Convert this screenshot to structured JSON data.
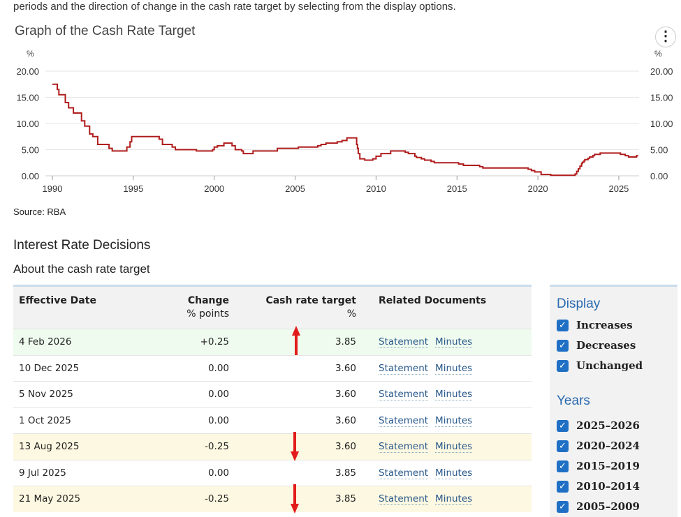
{
  "intro": "periods and the direction of change in the cash rate target by selecting from the display options.",
  "graph_title": "Graph of the Cash Rate Target",
  "menu_icon": "⋮",
  "source": "Source: RBA",
  "section_title": "Interest Rate Decisions",
  "subsection_title": "About the cash rate target",
  "chart_data": {
    "type": "line",
    "title": "Graph of the Cash Rate Target",
    "ylabel": "%",
    "ylim": [
      0,
      20
    ],
    "xlim": [
      1990,
      2026.2
    ],
    "yticks": [
      "0.00",
      "5.00",
      "10.00",
      "15.00",
      "20.00"
    ],
    "xticks": [
      "1990",
      "1995",
      "2000",
      "2005",
      "2010",
      "2015",
      "2020",
      "2025"
    ],
    "series": [
      {
        "name": "Cash rate target",
        "color": "#b01c1c",
        "points": [
          [
            1990,
            17.5
          ],
          [
            1990.3,
            16.5
          ],
          [
            1990.4,
            15.5
          ],
          [
            1990.8,
            14
          ],
          [
            1991,
            13
          ],
          [
            1991.3,
            12
          ],
          [
            1991.8,
            10.5
          ],
          [
            1992,
            9.5
          ],
          [
            1992.3,
            8
          ],
          [
            1992.5,
            7.5
          ],
          [
            1992.8,
            6
          ],
          [
            1993.5,
            5.25
          ],
          [
            1993.7,
            4.75
          ],
          [
            1994.6,
            5.5
          ],
          [
            1994.8,
            6.5
          ],
          [
            1994.9,
            7.5
          ],
          [
            1996.6,
            7
          ],
          [
            1996.8,
            6
          ],
          [
            1997.4,
            5.5
          ],
          [
            1997.6,
            5
          ],
          [
            1998.9,
            4.75
          ],
          [
            1999.9,
            5
          ],
          [
            2000,
            5.5
          ],
          [
            2000.2,
            5.75
          ],
          [
            2000.6,
            6.25
          ],
          [
            2001.1,
            5.75
          ],
          [
            2001.3,
            5
          ],
          [
            2001.7,
            4.75
          ],
          [
            2001.8,
            4.25
          ],
          [
            2002.4,
            4.75
          ],
          [
            2003.9,
            5.25
          ],
          [
            2005.2,
            5.5
          ],
          [
            2006.4,
            5.75
          ],
          [
            2006.6,
            6
          ],
          [
            2006.9,
            6.25
          ],
          [
            2007.6,
            6.5
          ],
          [
            2007.9,
            6.75
          ],
          [
            2008.2,
            7.25
          ],
          [
            2008.8,
            6
          ],
          [
            2008.85,
            5.25
          ],
          [
            2008.9,
            4.25
          ],
          [
            2009,
            3.25
          ],
          [
            2009.3,
            3
          ],
          [
            2009.8,
            3.25
          ],
          [
            2010,
            3.75
          ],
          [
            2010.3,
            4.25
          ],
          [
            2010.9,
            4.75
          ],
          [
            2011.8,
            4.5
          ],
          [
            2012,
            4.25
          ],
          [
            2012.4,
            3.75
          ],
          [
            2012.5,
            3.5
          ],
          [
            2012.8,
            3.25
          ],
          [
            2013,
            3
          ],
          [
            2013.4,
            2.75
          ],
          [
            2013.6,
            2.5
          ],
          [
            2015.1,
            2.25
          ],
          [
            2015.4,
            2
          ],
          [
            2016.4,
            1.75
          ],
          [
            2016.6,
            1.5
          ],
          [
            2019.4,
            1.25
          ],
          [
            2019.6,
            1
          ],
          [
            2019.8,
            0.75
          ],
          [
            2020.2,
            0.25
          ],
          [
            2020.8,
            0.1
          ],
          [
            2022.3,
            0.35
          ],
          [
            2022.4,
            0.85
          ],
          [
            2022.5,
            1.35
          ],
          [
            2022.6,
            1.85
          ],
          [
            2022.7,
            2.35
          ],
          [
            2022.75,
            2.6
          ],
          [
            2022.85,
            2.85
          ],
          [
            2022.9,
            3.1
          ],
          [
            2023.1,
            3.35
          ],
          [
            2023.2,
            3.6
          ],
          [
            2023.4,
            3.85
          ],
          [
            2023.5,
            4.1
          ],
          [
            2023.85,
            4.35
          ],
          [
            2025.1,
            4.1
          ],
          [
            2025.4,
            3.85
          ],
          [
            2025.6,
            3.6
          ],
          [
            2026.1,
            3.85
          ],
          [
            2026.2,
            3.85
          ]
        ]
      }
    ]
  },
  "table": {
    "headers": {
      "date": "Effective Date",
      "change": "Change",
      "change_unit": "% points",
      "target": "Cash rate target",
      "target_unit": "%",
      "docs": "Related Documents"
    },
    "rows": [
      {
        "date": "4 Feb 2026",
        "change": "+0.25",
        "target": "3.85",
        "s": "Statement",
        "m": "Minutes",
        "type": "inc"
      },
      {
        "date": "10 Dec 2025",
        "change": "0.00",
        "target": "3.60",
        "s": "Statement",
        "m": "Minutes",
        "type": "unc"
      },
      {
        "date": "5 Nov 2025",
        "change": "0.00",
        "target": "3.60",
        "s": "Statement",
        "m": "Minutes",
        "type": "unc"
      },
      {
        "date": "1 Oct 2025",
        "change": "0.00",
        "target": "3.60",
        "s": "Statement",
        "m": "Minutes",
        "type": "unc"
      },
      {
        "date": "13 Aug 2025",
        "change": "-0.25",
        "target": "3.60",
        "s": "Statement",
        "m": "Minutes",
        "type": "dec"
      },
      {
        "date": "9 Jul 2025",
        "change": "0.00",
        "target": "3.85",
        "s": "Statement",
        "m": "Minutes",
        "type": "unc"
      },
      {
        "date": "21 May 2025",
        "change": "-0.25",
        "target": "3.85",
        "s": "Statement",
        "m": "Minutes",
        "type": "dec"
      }
    ]
  },
  "panel": {
    "display_title": "Display",
    "display": [
      "Increases",
      "Decreases",
      "Unchanged"
    ],
    "years_title": "Years",
    "years": [
      "2025–2026",
      "2020–2024",
      "2015–2019",
      "2010–2014",
      "2005–2009"
    ],
    "check": "✓"
  },
  "colors": {
    "line": "#b01c1c",
    "arrow": "#e21b1b",
    "accent": "#2a6ab0"
  }
}
